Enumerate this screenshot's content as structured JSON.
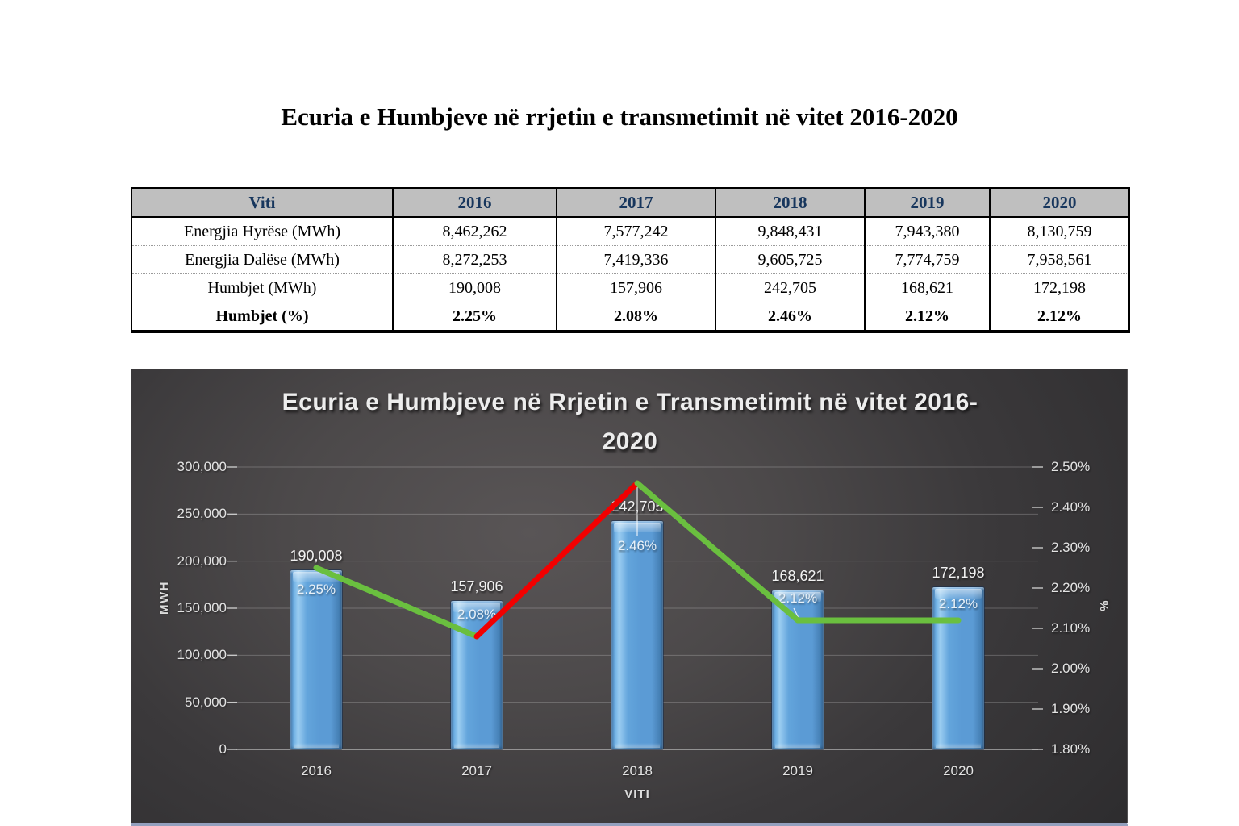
{
  "document": {
    "title": "Ecuria e Humbjeve në rrjetin e transmetimit në vitet 2016-2020"
  },
  "table": {
    "header": [
      "Viti",
      "2016",
      "2017",
      "2018",
      "2019",
      "2020"
    ],
    "rows": [
      {
        "label": "Energjia Hyrëse (MWh)",
        "values": [
          "8,462,262",
          "7,577,242",
          "9,848,431",
          "7,943,380",
          "8,130,759"
        ]
      },
      {
        "label": "Energjia Dalëse (MWh)",
        "values": [
          "8,272,253",
          "7,419,336",
          "9,605,725",
          "7,774,759",
          "7,958,561"
        ]
      },
      {
        "label": "Humbjet (MWh)",
        "values": [
          "190,008",
          "157,906",
          "242,705",
          "168,621",
          "172,198"
        ]
      },
      {
        "label": "Humbjet (%)",
        "values": [
          "2.25%",
          "2.08%",
          "2.46%",
          "2.12%",
          "2.12%"
        ]
      }
    ]
  },
  "chart_data": {
    "type": "combo-bar-line",
    "title": "Ecuria e Humbjeve në Rrjetin e Transmetimit në vitet 2016-2020",
    "title_lines": [
      "Ecuria e Humbjeve në Rrjetin e Transmetimit në vitet 2016-",
      "2020"
    ],
    "categories": [
      "2016",
      "2017",
      "2018",
      "2019",
      "2020"
    ],
    "series": [
      {
        "name": "Humbjet (MWh)",
        "type": "bar",
        "axis": "left",
        "color": "#5B9BD5",
        "values": [
          190008,
          157906,
          242705,
          168621,
          172198
        ],
        "labels": [
          "190,008",
          "157,906",
          "242,705",
          "168,621",
          "172,198"
        ]
      },
      {
        "name": "Humbjet (%)",
        "type": "line",
        "axis": "right",
        "values": [
          2.25,
          2.08,
          2.46,
          2.12,
          2.12
        ],
        "labels": [
          "2.25%",
          "2.08%",
          "2.46%",
          "2.12%",
          "2.12%"
        ],
        "segment_colors": [
          "#6ABF3F",
          "#F20000",
          "#6ABF3F",
          "#6ABF3F"
        ]
      }
    ],
    "left_axis": {
      "title": "MWH",
      "min": 0,
      "max": 300000,
      "tick_labels": [
        "300,000",
        "250,000",
        "200,000",
        "150,000",
        "100,000",
        "50,000",
        "0"
      ]
    },
    "right_axis": {
      "title": "%",
      "min": 1.8,
      "max": 2.5,
      "tick_labels": [
        "2.50%",
        "2.40%",
        "2.30%",
        "2.20%",
        "2.10%",
        "2.00%",
        "1.90%",
        "1.80%"
      ]
    },
    "x_axis": {
      "title": "VITI"
    },
    "grid": "horizontal",
    "legend": "none",
    "background": "dark-gray-gradient"
  }
}
